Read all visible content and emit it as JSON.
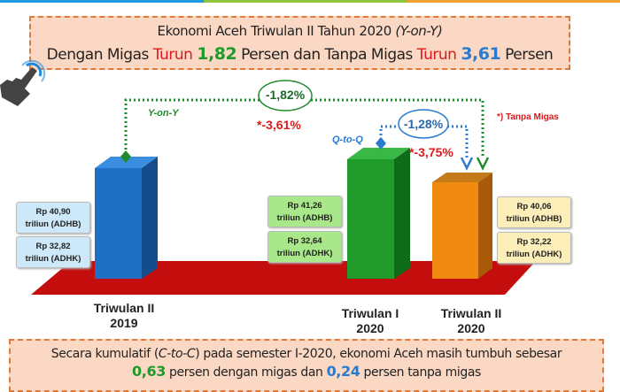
{
  "header": {
    "title_main": "Ekonomi Aceh Triwulan II Tahun 2020 ",
    "title_italic": "(Y-on-Y)",
    "sub_1": "Dengan Migas ",
    "sub_turun_1": "Turun ",
    "sub_val_1": "1,82",
    "sub_2": " Persen dan Tanpa Migas ",
    "sub_turun_2": "Turun ",
    "sub_val_2": "3,61",
    "sub_3": " Persen"
  },
  "annotations": {
    "yoy_label": "Y-on-Y",
    "yoy_value": "-1,82%",
    "yoy_tanpa_migas": "*-3,61%",
    "qtq_label": "Q-to-Q",
    "qtq_value": "-1,28%",
    "qtq_tanpa_migas": "*-3,75%",
    "footnote": "*) Tanpa Migas"
  },
  "bars": [
    {
      "label_1": "Triwulan II",
      "label_2": "2019",
      "adhb": "Rp 40,90",
      "adhb_unit": "triliun (ADHB)",
      "adhk": "Rp 32,82",
      "adhk_unit": "triliun (ADHK)",
      "color": "#1f6fc5"
    },
    {
      "label_1": "Triwulan I",
      "label_2": "2020",
      "adhb": "Rp 41,26",
      "adhb_unit": "triliun (ADHB)",
      "adhk": "Rp 32,64",
      "adhk_unit": "triliun (ADHK)",
      "color": "#1f9a2b"
    },
    {
      "label_1": "Triwulan II",
      "label_2": "2020",
      "adhb": "Rp 40,06",
      "adhb_unit": "triliun (ADHB)",
      "adhk": "Rp 32,22",
      "adhk_unit": "triliun (ADHK)",
      "color": "#f08a10"
    }
  ],
  "footer": {
    "l1a": "Secara kumulatif (",
    "l1b": "C-to-C",
    "l1c": ") pada semester I-2020, ekonomi Aceh masih tumbuh sebesar",
    "v1": "0,63",
    "l2a": " persen dengan migas dan  ",
    "v2": "0,24",
    "l2b": " persen tanpa migas"
  },
  "colors": {
    "floor": "#c40d0d",
    "box_bg": "#fbd8c4",
    "box_border": "#e07a3a",
    "strip": [
      "#1e9be0",
      "#8cc43c",
      "#f0a030"
    ]
  }
}
